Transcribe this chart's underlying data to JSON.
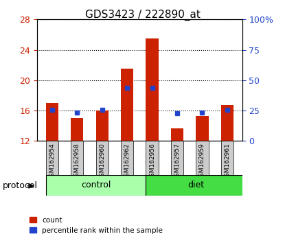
{
  "title": "GDS3423 / 222890_at",
  "samples": [
    "GSM162954",
    "GSM162958",
    "GSM162960",
    "GSM162962",
    "GSM162956",
    "GSM162957",
    "GSM162959",
    "GSM162961"
  ],
  "count_values": [
    17.0,
    15.0,
    16.0,
    21.5,
    25.5,
    13.7,
    15.3,
    16.7
  ],
  "percentile_values": [
    25.5,
    23.5,
    25.5,
    43.5,
    43.5,
    22.5,
    23.5,
    25.5
  ],
  "groups": [
    {
      "label": "control",
      "start": 0,
      "end": 4,
      "color": "#aaffaa"
    },
    {
      "label": "diet",
      "start": 4,
      "end": 8,
      "color": "#44dd44"
    }
  ],
  "protocol_label": "protocol",
  "ylim_left": [
    12,
    28
  ],
  "ylim_right": [
    0,
    100
  ],
  "yticks_left": [
    12,
    16,
    20,
    24,
    28
  ],
  "yticks_right": [
    0,
    25,
    50,
    75,
    100
  ],
  "bar_bottom": 12,
  "bar_color": "#cc2200",
  "percentile_color": "#2244cc",
  "grid_color": "#000000",
  "bg_color": "#ffffff",
  "tick_label_color_left": "#cc2200",
  "tick_label_color_right": "#2244cc",
  "legend_count_label": "count",
  "legend_pct_label": "percentile rank within the sample",
  "n_bars": 8
}
